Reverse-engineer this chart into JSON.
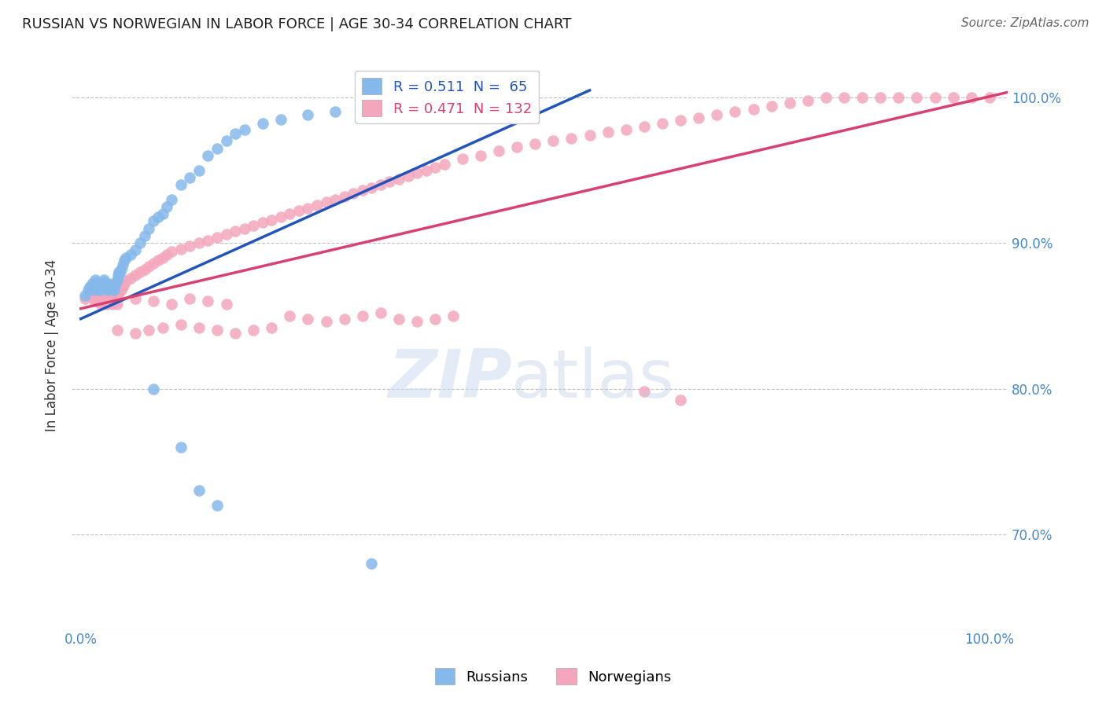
{
  "title": "RUSSIAN VS NORWEGIAN IN LABOR FORCE | AGE 30-34 CORRELATION CHART",
  "source": "Source: ZipAtlas.com",
  "ylabel": "In Labor Force | Age 30-34",
  "russian_color": "#85b9eb",
  "norwegian_color": "#f4a7bc",
  "trendline_russian_color": "#2255bb",
  "trendline_norwegian_color": "#d94070",
  "russian_marker_size": 110,
  "norwegian_marker_size": 110,
  "ylim_low": 0.635,
  "ylim_high": 1.025,
  "xlim_low": -0.01,
  "xlim_high": 1.02,
  "rus_trendline_start_x": 0.0,
  "rus_trendline_end_x": 0.55,
  "nor_trendline_start_x": 0.0,
  "nor_trendline_end_x": 1.01,
  "rus_x": [
    0.005,
    0.008,
    0.01,
    0.012,
    0.013,
    0.015,
    0.015,
    0.016,
    0.017,
    0.018,
    0.019,
    0.02,
    0.021,
    0.022,
    0.023,
    0.025,
    0.026,
    0.027,
    0.028,
    0.029,
    0.03,
    0.031,
    0.032,
    0.033,
    0.034,
    0.035,
    0.037,
    0.038,
    0.04,
    0.041,
    0.042,
    0.043,
    0.044,
    0.046,
    0.048,
    0.05,
    0.055,
    0.06,
    0.065,
    0.07,
    0.075,
    0.08,
    0.085,
    0.09,
    0.095,
    0.1,
    0.11,
    0.12,
    0.13,
    0.14,
    0.15,
    0.16,
    0.17,
    0.18,
    0.2,
    0.22,
    0.25,
    0.28,
    0.32,
    0.36,
    0.08,
    0.11,
    0.13,
    0.15,
    0.32
  ],
  "rus_y": [
    0.864,
    0.868,
    0.87,
    0.872,
    0.87,
    0.868,
    0.872,
    0.875,
    0.873,
    0.87,
    0.871,
    0.872,
    0.868,
    0.87,
    0.872,
    0.875,
    0.873,
    0.87,
    0.871,
    0.869,
    0.868,
    0.872,
    0.87,
    0.869,
    0.871,
    0.87,
    0.868,
    0.872,
    0.875,
    0.878,
    0.88,
    0.879,
    0.882,
    0.885,
    0.888,
    0.89,
    0.892,
    0.895,
    0.9,
    0.905,
    0.91,
    0.915,
    0.918,
    0.92,
    0.925,
    0.93,
    0.94,
    0.945,
    0.95,
    0.96,
    0.965,
    0.97,
    0.975,
    0.978,
    0.982,
    0.985,
    0.988,
    0.99,
    0.993,
    0.995,
    0.8,
    0.76,
    0.73,
    0.72,
    0.68
  ],
  "nor_x": [
    0.005,
    0.008,
    0.01,
    0.012,
    0.013,
    0.015,
    0.016,
    0.017,
    0.018,
    0.019,
    0.02,
    0.021,
    0.022,
    0.023,
    0.025,
    0.026,
    0.027,
    0.028,
    0.029,
    0.03,
    0.031,
    0.032,
    0.033,
    0.034,
    0.035,
    0.037,
    0.038,
    0.04,
    0.042,
    0.044,
    0.046,
    0.048,
    0.05,
    0.055,
    0.06,
    0.065,
    0.07,
    0.075,
    0.08,
    0.085,
    0.09,
    0.095,
    0.1,
    0.11,
    0.12,
    0.13,
    0.14,
    0.15,
    0.16,
    0.17,
    0.18,
    0.19,
    0.2,
    0.21,
    0.22,
    0.23,
    0.24,
    0.25,
    0.26,
    0.27,
    0.28,
    0.29,
    0.3,
    0.31,
    0.32,
    0.33,
    0.34,
    0.35,
    0.36,
    0.37,
    0.38,
    0.39,
    0.4,
    0.42,
    0.44,
    0.46,
    0.48,
    0.5,
    0.52,
    0.54,
    0.56,
    0.58,
    0.6,
    0.62,
    0.64,
    0.66,
    0.68,
    0.7,
    0.72,
    0.74,
    0.76,
    0.78,
    0.8,
    0.82,
    0.84,
    0.86,
    0.88,
    0.9,
    0.92,
    0.94,
    0.96,
    0.98,
    1.0,
    0.04,
    0.06,
    0.08,
    0.1,
    0.12,
    0.14,
    0.16,
    0.04,
    0.06,
    0.075,
    0.09,
    0.11,
    0.13,
    0.15,
    0.17,
    0.19,
    0.21,
    0.23,
    0.25,
    0.27,
    0.29,
    0.31,
    0.33,
    0.35,
    0.37,
    0.39,
    0.41,
    0.62,
    0.66
  ],
  "nor_y": [
    0.862,
    0.865,
    0.867,
    0.865,
    0.863,
    0.86,
    0.862,
    0.864,
    0.862,
    0.86,
    0.862,
    0.86,
    0.858,
    0.86,
    0.862,
    0.864,
    0.862,
    0.86,
    0.858,
    0.86,
    0.862,
    0.864,
    0.862,
    0.86,
    0.858,
    0.86,
    0.862,
    0.864,
    0.866,
    0.868,
    0.87,
    0.872,
    0.874,
    0.876,
    0.878,
    0.88,
    0.882,
    0.884,
    0.886,
    0.888,
    0.89,
    0.892,
    0.894,
    0.896,
    0.898,
    0.9,
    0.902,
    0.904,
    0.906,
    0.908,
    0.91,
    0.912,
    0.914,
    0.916,
    0.918,
    0.92,
    0.922,
    0.924,
    0.926,
    0.928,
    0.93,
    0.932,
    0.934,
    0.936,
    0.938,
    0.94,
    0.942,
    0.944,
    0.946,
    0.948,
    0.95,
    0.952,
    0.954,
    0.958,
    0.96,
    0.963,
    0.966,
    0.968,
    0.97,
    0.972,
    0.974,
    0.976,
    0.978,
    0.98,
    0.982,
    0.984,
    0.986,
    0.988,
    0.99,
    0.992,
    0.994,
    0.996,
    0.998,
    1.0,
    1.0,
    1.0,
    1.0,
    1.0,
    1.0,
    1.0,
    1.0,
    1.0,
    1.0,
    0.858,
    0.862,
    0.86,
    0.858,
    0.862,
    0.86,
    0.858,
    0.84,
    0.838,
    0.84,
    0.842,
    0.844,
    0.842,
    0.84,
    0.838,
    0.84,
    0.842,
    0.85,
    0.848,
    0.846,
    0.848,
    0.85,
    0.852,
    0.848,
    0.846,
    0.848,
    0.85,
    0.798,
    0.792
  ]
}
